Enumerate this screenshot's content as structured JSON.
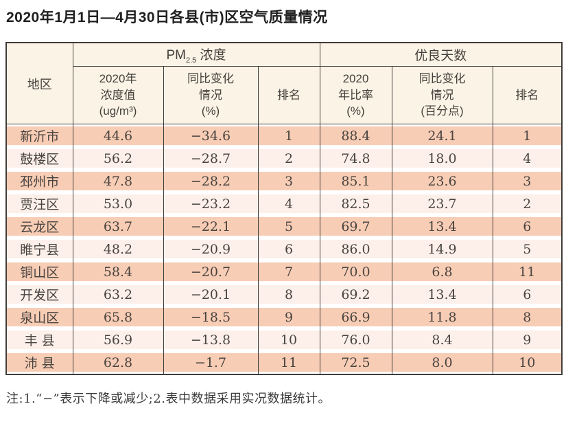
{
  "page": {
    "title": "2020年1月1日—4月30日各县(市)区空气质量情况",
    "note": "注:1.“−”表示下降或减少;2.表中数据采用实况数据统计。"
  },
  "colors": {
    "row_dark": "#f8cdb5",
    "row_light": "#fdf0ea",
    "header_bg": "#fbf3e6",
    "border": "#3f3c3a",
    "text": "#494440"
  },
  "table": {
    "region_header": "地区",
    "group_pm": {
      "prefix": "PM",
      "sub": "2.5",
      "suffix": " 浓度"
    },
    "group_good": "优良天数",
    "subheaders": {
      "pm_value": [
        "2020年",
        "浓度值",
        "(ug/m³)"
      ],
      "pm_change": [
        "同比变化",
        "情况",
        "(%)"
      ],
      "pm_rank": "排名",
      "good_ratio": [
        "2020",
        "年比率",
        "(%)"
      ],
      "good_change": [
        "同比变化",
        "情况",
        "(百分点)"
      ],
      "good_rank": "排名"
    },
    "rows": [
      {
        "region": "新沂市",
        "pm_value": "44.6",
        "pm_change": "−34.6",
        "pm_rank": "1",
        "good_ratio": "88.4",
        "good_change": "24.1",
        "good_rank": "1"
      },
      {
        "region": "鼓楼区",
        "pm_value": "56.2",
        "pm_change": "−28.7",
        "pm_rank": "2",
        "good_ratio": "74.8",
        "good_change": "18.0",
        "good_rank": "4"
      },
      {
        "region": "邳州市",
        "pm_value": "47.8",
        "pm_change": "−28.2",
        "pm_rank": "3",
        "good_ratio": "85.1",
        "good_change": "23.6",
        "good_rank": "3"
      },
      {
        "region": "贾汪区",
        "pm_value": "53.0",
        "pm_change": "−23.2",
        "pm_rank": "4",
        "good_ratio": "82.5",
        "good_change": "23.7",
        "good_rank": "2"
      },
      {
        "region": "云龙区",
        "pm_value": "63.7",
        "pm_change": "−22.1",
        "pm_rank": "5",
        "good_ratio": "69.7",
        "good_change": "13.4",
        "good_rank": "6"
      },
      {
        "region": "睢宁县",
        "pm_value": "48.2",
        "pm_change": "−20.9",
        "pm_rank": "6",
        "good_ratio": "86.0",
        "good_change": "14.9",
        "good_rank": "5"
      },
      {
        "region": "铜山区",
        "pm_value": "58.4",
        "pm_change": "−20.7",
        "pm_rank": "7",
        "good_ratio": "70.0",
        "good_change": "6.8",
        "good_rank": "11"
      },
      {
        "region": "开发区",
        "pm_value": "63.2",
        "pm_change": "−20.1",
        "pm_rank": "8",
        "good_ratio": "69.2",
        "good_change": "13.4",
        "good_rank": "6"
      },
      {
        "region": "泉山区",
        "pm_value": "65.8",
        "pm_change": "−18.5",
        "pm_rank": "9",
        "good_ratio": "66.9",
        "good_change": "11.8",
        "good_rank": "8"
      },
      {
        "region": "丰 县",
        "pm_value": "56.9",
        "pm_change": "−13.8",
        "pm_rank": "10",
        "good_ratio": "76.0",
        "good_change": "8.4",
        "good_rank": "9"
      },
      {
        "region": "沛 县",
        "pm_value": "62.8",
        "pm_change": "−1.7",
        "pm_rank": "11",
        "good_ratio": "72.5",
        "good_change": "8.0",
        "good_rank": "10"
      }
    ]
  }
}
